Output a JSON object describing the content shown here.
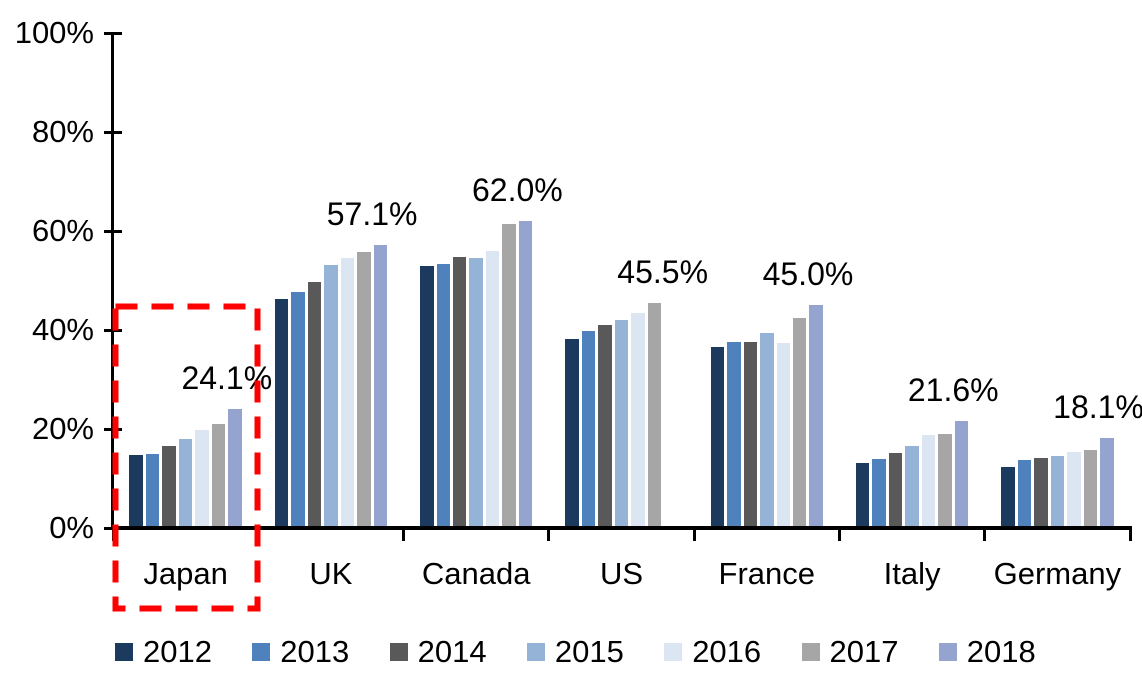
{
  "chart_data": {
    "type": "bar",
    "title": "",
    "categories": [
      "Japan",
      "UK",
      "Canada",
      "US",
      "France",
      "Italy",
      "Germany"
    ],
    "series": [
      {
        "name": "2012",
        "color": "#1B3A5E",
        "values": [
          14.7,
          46.2,
          52.9,
          38.1,
          36.5,
          13.1,
          12.3
        ]
      },
      {
        "name": "2013",
        "color": "#4F81BD",
        "values": [
          14.9,
          47.6,
          53.3,
          39.9,
          37.6,
          14.0,
          13.8
        ]
      },
      {
        "name": "2014",
        "color": "#595959",
        "values": [
          16.5,
          49.8,
          54.8,
          41.0,
          37.6,
          15.2,
          14.2
        ]
      },
      {
        "name": "2015",
        "color": "#95B3D7",
        "values": [
          17.9,
          53.1,
          54.6,
          42.0,
          39.3,
          16.6,
          14.6
        ]
      },
      {
        "name": "2016",
        "color": "#DCE6F2",
        "values": [
          19.9,
          54.6,
          56.0,
          43.4,
          37.4,
          18.8,
          15.3
        ]
      },
      {
        "name": "2017",
        "color": "#A6A6A6",
        "values": [
          21.0,
          55.7,
          61.5,
          45.5,
          42.4,
          19.0,
          15.8
        ]
      },
      {
        "name": "2018",
        "color": "#95A4CF",
        "values": [
          24.1,
          57.1,
          62.0,
          null,
          45.0,
          21.6,
          18.1
        ]
      }
    ],
    "group_data_labels": [
      "24.1%",
      "57.1%",
      "62.0%",
      "45.5%",
      "45.0%",
      "21.6%",
      "18.1%"
    ],
    "y_tick_labels": [
      "0%",
      "20%",
      "40%",
      "60%",
      "80%",
      "100%"
    ],
    "ylim": [
      0,
      100
    ],
    "grid": false,
    "legend_position": "bottom",
    "axis_color": "#000000",
    "highlight": {
      "category": "Japan",
      "color": "#FF0000",
      "style": "dashed-rectangle"
    }
  }
}
